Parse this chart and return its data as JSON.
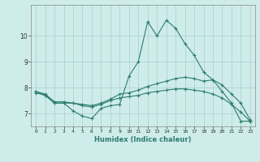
{
  "xlabel": "Humidex (Indice chaleur)",
  "x": [
    0,
    1,
    2,
    3,
    4,
    5,
    6,
    7,
    8,
    9,
    10,
    11,
    12,
    13,
    14,
    15,
    16,
    17,
    18,
    19,
    20,
    21,
    22,
    23
  ],
  "line1": [
    7.8,
    7.7,
    7.4,
    7.4,
    7.1,
    6.9,
    6.8,
    7.2,
    7.3,
    7.35,
    8.45,
    9.0,
    10.55,
    10.0,
    10.6,
    10.3,
    9.7,
    9.25,
    8.6,
    8.3,
    7.85,
    7.4,
    6.7,
    6.7
  ],
  "line2": [
    7.85,
    7.75,
    7.45,
    7.45,
    7.4,
    7.35,
    7.3,
    7.4,
    7.55,
    7.75,
    7.8,
    7.9,
    8.05,
    8.15,
    8.25,
    8.35,
    8.4,
    8.35,
    8.25,
    8.3,
    8.1,
    7.75,
    7.4,
    6.75
  ],
  "line3": [
    7.85,
    7.7,
    7.4,
    7.4,
    7.4,
    7.3,
    7.25,
    7.35,
    7.5,
    7.6,
    7.65,
    7.7,
    7.8,
    7.85,
    7.9,
    7.95,
    7.95,
    7.9,
    7.85,
    7.75,
    7.6,
    7.35,
    7.05,
    6.7
  ],
  "color": "#2e7d6e",
  "bg_color": "#ceecea",
  "grid_color": "#aacfcc",
  "ylim_min": 6.5,
  "ylim_max": 11.2,
  "xlim_min": -0.5,
  "xlim_max": 23.5,
  "yticks": [
    7,
    8,
    9,
    10
  ],
  "xticks": [
    0,
    1,
    2,
    3,
    4,
    5,
    6,
    7,
    8,
    9,
    10,
    11,
    12,
    13,
    14,
    15,
    16,
    17,
    18,
    19,
    20,
    21,
    22,
    23
  ]
}
